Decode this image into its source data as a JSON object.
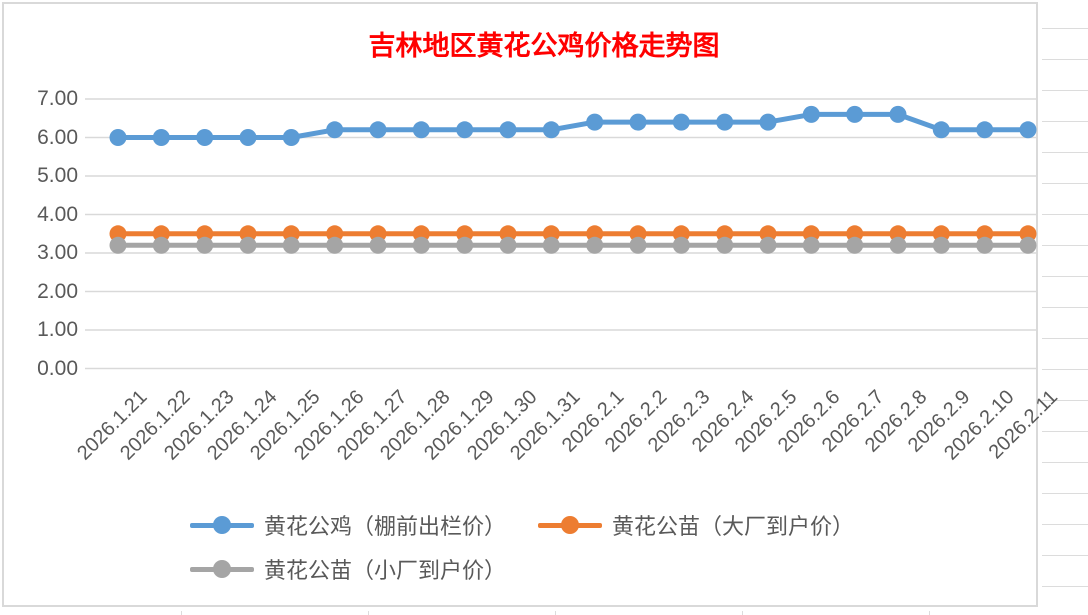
{
  "title": {
    "text": "吉林地区黄花公鸡价格走势图",
    "color": "#FF0000"
  },
  "chart_data": {
    "type": "line",
    "title": "吉林地区黄花公鸡价格走势图",
    "categories": [
      "2026.1.21",
      "2026.1.22",
      "2026.1.23",
      "2026.1.24",
      "2026.1.25",
      "2026.1.26",
      "2026.1.27",
      "2026.1.28",
      "2026.1.29",
      "2026.1.30",
      "2026.1.31",
      "2026.2.1",
      "2026.2.2",
      "2026.2.3",
      "2026.2.4",
      "2026.2.5",
      "2026.2.6",
      "2026.2.7",
      "2026.2.8",
      "2026.2.9",
      "2026.2.10",
      "2026.2.11"
    ],
    "series": [
      {
        "name": "黄花公鸡（棚前出栏价）",
        "color": "#5B9BD5",
        "values": [
          6.0,
          6.0,
          6.0,
          6.0,
          6.0,
          6.2,
          6.2,
          6.2,
          6.2,
          6.2,
          6.2,
          6.4,
          6.4,
          6.4,
          6.4,
          6.4,
          6.6,
          6.6,
          6.6,
          6.2,
          6.2,
          6.2
        ]
      },
      {
        "name": "黄花公苗（大厂到户价）",
        "color": "#ED7D31",
        "values": [
          3.5,
          3.5,
          3.5,
          3.5,
          3.5,
          3.5,
          3.5,
          3.5,
          3.5,
          3.5,
          3.5,
          3.5,
          3.5,
          3.5,
          3.5,
          3.5,
          3.5,
          3.5,
          3.5,
          3.5,
          3.5,
          3.5
        ]
      },
      {
        "name": "黄花公苗（小厂到户价）",
        "color": "#A5A5A5",
        "values": [
          3.2,
          3.2,
          3.2,
          3.2,
          3.2,
          3.2,
          3.2,
          3.2,
          3.2,
          3.2,
          3.2,
          3.2,
          3.2,
          3.2,
          3.2,
          3.2,
          3.2,
          3.2,
          3.2,
          3.2,
          3.2,
          3.2
        ]
      }
    ],
    "xlabel": "",
    "ylabel": "",
    "y_axis": {
      "min": 0,
      "max": 7,
      "step": 1,
      "tick_labels": [
        "0.00",
        "1.00",
        "2.00",
        "3.00",
        "4.00",
        "5.00",
        "6.00",
        "7.00"
      ]
    },
    "grid": true,
    "legend_position": "bottom",
    "gridline_color": "#D9D9D9",
    "tick_text_color": "#595959"
  }
}
